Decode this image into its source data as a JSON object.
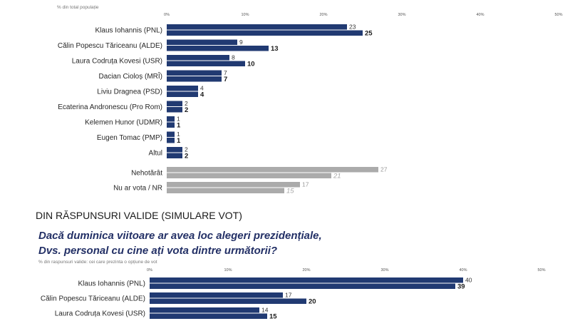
{
  "chart_data": [
    {
      "type": "bar",
      "orientation": "horizontal",
      "subtitle": "% din total populație",
      "x_ticks": [
        "0%",
        "10%",
        "20%",
        "30%",
        "40%",
        "50%"
      ],
      "xlim": [
        0,
        50
      ],
      "categories": [
        "Klaus Iohannis (PNL)",
        "Călin Popescu Tăriceanu (ALDE)",
        "Laura Codruța Kovesi (USR)",
        "Dacian Cioloș (MRÎ)",
        "Liviu Dragnea (PSD)",
        "Ecaterina Andronescu (Pro Rom)",
        "Kelemen Hunor (UDMR)",
        "Eugen Tomac (PMP)",
        "Altul"
      ],
      "series": [
        {
          "values": [
            23,
            9,
            8,
            7,
            4,
            2,
            1,
            1,
            2
          ],
          "color": "#213a72"
        },
        {
          "values": [
            25,
            13,
            10,
            7,
            4,
            2,
            1,
            1,
            2
          ],
          "color": "#213a72"
        }
      ],
      "extra_categories": [
        "Nehotărât",
        "Nu ar vota / NR"
      ],
      "extra_series": [
        {
          "values": [
            27,
            17
          ],
          "color": "#ababab"
        },
        {
          "values": [
            21,
            15
          ],
          "color": "#ababab"
        }
      ]
    },
    {
      "type": "bar",
      "orientation": "horizontal",
      "section_title": "DIN RĂSPUNSURI VALIDE (SIMULARE VOT)",
      "question_lines": [
        "Dacă duminica viitoare ar avea loc alegeri prezidențiale,",
        "Dvs. personal cu cine ați vota dintre următorii?"
      ],
      "subtitle": "% din raspunsuri valide: cei care prezinta o opțiune de vot",
      "x_ticks": [
        "0%",
        "10%",
        "20%",
        "30%",
        "40%",
        "50%"
      ],
      "xlim": [
        0,
        50
      ],
      "categories": [
        "Klaus Iohannis (PNL)",
        "Călin Popescu Tăriceanu (ALDE)",
        "Laura Codruța Kovesi (USR)"
      ],
      "series": [
        {
          "values": [
            40,
            17,
            14
          ],
          "color": "#213a72"
        },
        {
          "values": [
            39,
            20,
            15
          ],
          "color": "#213a72"
        }
      ]
    }
  ]
}
